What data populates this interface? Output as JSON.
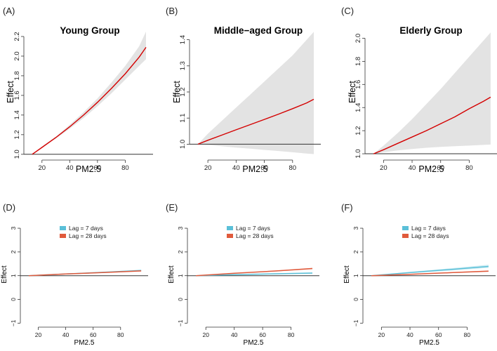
{
  "chart_data": [
    {
      "panel": "(A)",
      "type": "line",
      "title": "Young Group",
      "xlabel": "PM2.5",
      "ylabel": "Effect",
      "xlim": [
        10,
        97
      ],
      "ylim": [
        0.97,
        2.3
      ],
      "xticks": [
        20,
        40,
        60,
        80
      ],
      "yticks": [
        1.0,
        1.2,
        1.4,
        1.6,
        1.8,
        2.0,
        2.2
      ],
      "yticklabels": [
        "1.0",
        "1.2",
        "1.4",
        "1.6",
        "1.8",
        "2.0",
        "2.2"
      ],
      "reference_line": 1.0,
      "series": [
        {
          "color": "#d40000",
          "x": [
            13,
            20,
            30,
            40,
            50,
            60,
            70,
            80,
            90,
            95
          ],
          "y": [
            1.0,
            1.07,
            1.17,
            1.28,
            1.4,
            1.53,
            1.67,
            1.82,
            1.99,
            2.09
          ],
          "lower": [
            1.0,
            1.07,
            1.16,
            1.26,
            1.37,
            1.49,
            1.62,
            1.76,
            1.9,
            1.97
          ],
          "upper": [
            1.0,
            1.08,
            1.18,
            1.3,
            1.43,
            1.57,
            1.73,
            1.9,
            2.1,
            2.25
          ]
        }
      ]
    },
    {
      "panel": "(B)",
      "type": "line",
      "title": "Middle−aged Group",
      "xlabel": "PM2.5",
      "ylabel": "Effect",
      "xlim": [
        10,
        97
      ],
      "ylim": [
        0.95,
        1.45
      ],
      "xticks": [
        20,
        40,
        60,
        80
      ],
      "yticks": [
        1.0,
        1.1,
        1.2,
        1.3,
        1.4
      ],
      "yticklabels": [
        "1.0",
        "1.1",
        "1.2",
        "1.3",
        "1.4"
      ],
      "reference_line": 1.0,
      "series": [
        {
          "color": "#d40000",
          "x": [
            13,
            20,
            30,
            40,
            50,
            60,
            70,
            80,
            90,
            95
          ],
          "y": [
            1.0,
            1.015,
            1.035,
            1.055,
            1.075,
            1.095,
            1.115,
            1.136,
            1.158,
            1.172
          ],
          "lower": [
            1.0,
            0.997,
            0.992,
            0.987,
            0.983,
            0.978,
            0.974,
            0.969,
            0.964,
            0.962
          ],
          "upper": [
            1.0,
            1.04,
            1.09,
            1.14,
            1.19,
            1.24,
            1.29,
            1.34,
            1.4,
            1.43
          ]
        }
      ]
    },
    {
      "panel": "(C)",
      "type": "line",
      "title": "Elderly Group",
      "xlabel": "PM2.5",
      "ylabel": "Effect",
      "xlim": [
        10,
        97
      ],
      "ylim": [
        0.97,
        2.1
      ],
      "xticks": [
        20,
        40,
        60,
        80
      ],
      "yticks": [
        1.0,
        1.2,
        1.4,
        1.6,
        1.8,
        2.0
      ],
      "yticklabels": [
        "1.0",
        "1.2",
        "1.4",
        "1.6",
        "1.8",
        "2.0"
      ],
      "reference_line": 1.0,
      "series": [
        {
          "color": "#d40000",
          "x": [
            13,
            20,
            30,
            40,
            50,
            60,
            70,
            80,
            90,
            95
          ],
          "y": [
            1.0,
            1.035,
            1.09,
            1.145,
            1.2,
            1.26,
            1.32,
            1.39,
            1.455,
            1.49
          ],
          "lower": [
            1.0,
            1.013,
            1.029,
            1.041,
            1.052,
            1.06,
            1.066,
            1.071,
            1.077,
            1.08
          ],
          "upper": [
            1.0,
            1.07,
            1.18,
            1.3,
            1.43,
            1.56,
            1.7,
            1.84,
            1.98,
            2.05
          ]
        }
      ]
    },
    {
      "panel": "(D)",
      "type": "line",
      "title": "",
      "xlabel": "PM2.5",
      "ylabel": "Effect",
      "xlim": [
        10,
        97
      ],
      "ylim": [
        -1.05,
        3.15
      ],
      "xticks": [
        20,
        40,
        60,
        80
      ],
      "yticks": [
        -1,
        0,
        1,
        2,
        3
      ],
      "yticklabels": [
        "−1",
        "0",
        "1",
        "2",
        "3"
      ],
      "reference_line": 1.0,
      "legend": "top-left",
      "series": [
        {
          "name": "Lag = 7 days",
          "color": "#5bc0d8",
          "x": [
            13,
            40,
            70,
            95
          ],
          "y": [
            1.0,
            1.07,
            1.15,
            1.22
          ],
          "lower": [
            1.0,
            1.06,
            1.13,
            1.19
          ],
          "upper": [
            1.0,
            1.08,
            1.17,
            1.25
          ]
        },
        {
          "name": "Lag = 28 days",
          "color": "#e05a3c",
          "x": [
            13,
            40,
            70,
            95
          ],
          "y": [
            1.0,
            1.07,
            1.14,
            1.2
          ],
          "lower": [
            1.0,
            1.06,
            1.12,
            1.17
          ],
          "upper": [
            1.0,
            1.08,
            1.16,
            1.23
          ]
        }
      ]
    },
    {
      "panel": "(E)",
      "type": "line",
      "title": "",
      "xlabel": "PM2.5",
      "ylabel": "Effect",
      "xlim": [
        10,
        97
      ],
      "ylim": [
        -1.05,
        3.15
      ],
      "xticks": [
        20,
        40,
        60,
        80
      ],
      "yticks": [
        -1,
        0,
        1,
        2,
        3
      ],
      "yticklabels": [
        "−1",
        "0",
        "1",
        "2",
        "3"
      ],
      "reference_line": 1.0,
      "legend": "top-left",
      "series": [
        {
          "name": "Lag = 7 days",
          "color": "#5bc0d8",
          "x": [
            13,
            40,
            70,
            95
          ],
          "y": [
            1.0,
            1.04,
            1.08,
            1.11
          ],
          "lower": [
            1.0,
            1.03,
            1.06,
            1.08
          ],
          "upper": [
            1.0,
            1.05,
            1.1,
            1.14
          ]
        },
        {
          "name": "Lag = 28 days",
          "color": "#e05a3c",
          "x": [
            13,
            40,
            70,
            95
          ],
          "y": [
            1.0,
            1.1,
            1.2,
            1.3
          ],
          "lower": [
            1.0,
            1.09,
            1.18,
            1.27
          ],
          "upper": [
            1.0,
            1.11,
            1.22,
            1.33
          ]
        }
      ]
    },
    {
      "panel": "(F)",
      "type": "line",
      "title": "",
      "xlabel": "PM2.5",
      "ylabel": "Effect",
      "xlim": [
        10,
        97
      ],
      "ylim": [
        -1.05,
        3.15
      ],
      "xticks": [
        20,
        40,
        60,
        80
      ],
      "yticks": [
        -1,
        0,
        1,
        2,
        3
      ],
      "yticklabels": [
        "−1",
        "0",
        "1",
        "2",
        "3"
      ],
      "reference_line": 1.0,
      "legend": "top-left",
      "series": [
        {
          "name": "Lag = 7 days",
          "color": "#5bc0d8",
          "x": [
            13,
            40,
            70,
            95
          ],
          "y": [
            1.0,
            1.13,
            1.27,
            1.39
          ],
          "lower": [
            1.0,
            1.1,
            1.22,
            1.33
          ],
          "upper": [
            1.0,
            1.16,
            1.32,
            1.46
          ]
        },
        {
          "name": "Lag = 28 days",
          "color": "#e05a3c",
          "x": [
            13,
            40,
            70,
            95
          ],
          "y": [
            1.0,
            1.06,
            1.13,
            1.19
          ],
          "lower": [
            1.0,
            1.05,
            1.11,
            1.16
          ],
          "upper": [
            1.0,
            1.07,
            1.15,
            1.22
          ]
        }
      ]
    }
  ]
}
